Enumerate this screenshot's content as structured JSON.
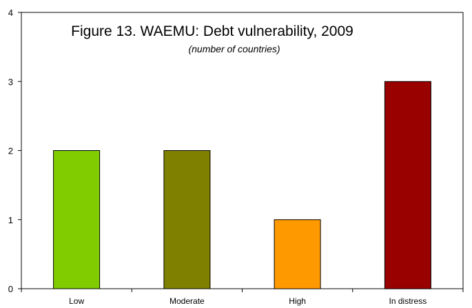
{
  "chart_data": {
    "type": "bar",
    "title": "Figure 13. WAEMU: Debt vulnerability, 2009",
    "subtitle": "(number of countries)",
    "xlabel": "",
    "ylabel": "",
    "categories": [
      "Low",
      "Moderate",
      "High",
      "In distress"
    ],
    "values": [
      2,
      2,
      1,
      3
    ],
    "colors": [
      "#80cc00",
      "#808000",
      "#ff9900",
      "#990000"
    ],
    "ylim": [
      0,
      4
    ],
    "yticks": [
      0,
      1,
      2,
      3,
      4
    ],
    "grid": false,
    "legend": "none"
  }
}
